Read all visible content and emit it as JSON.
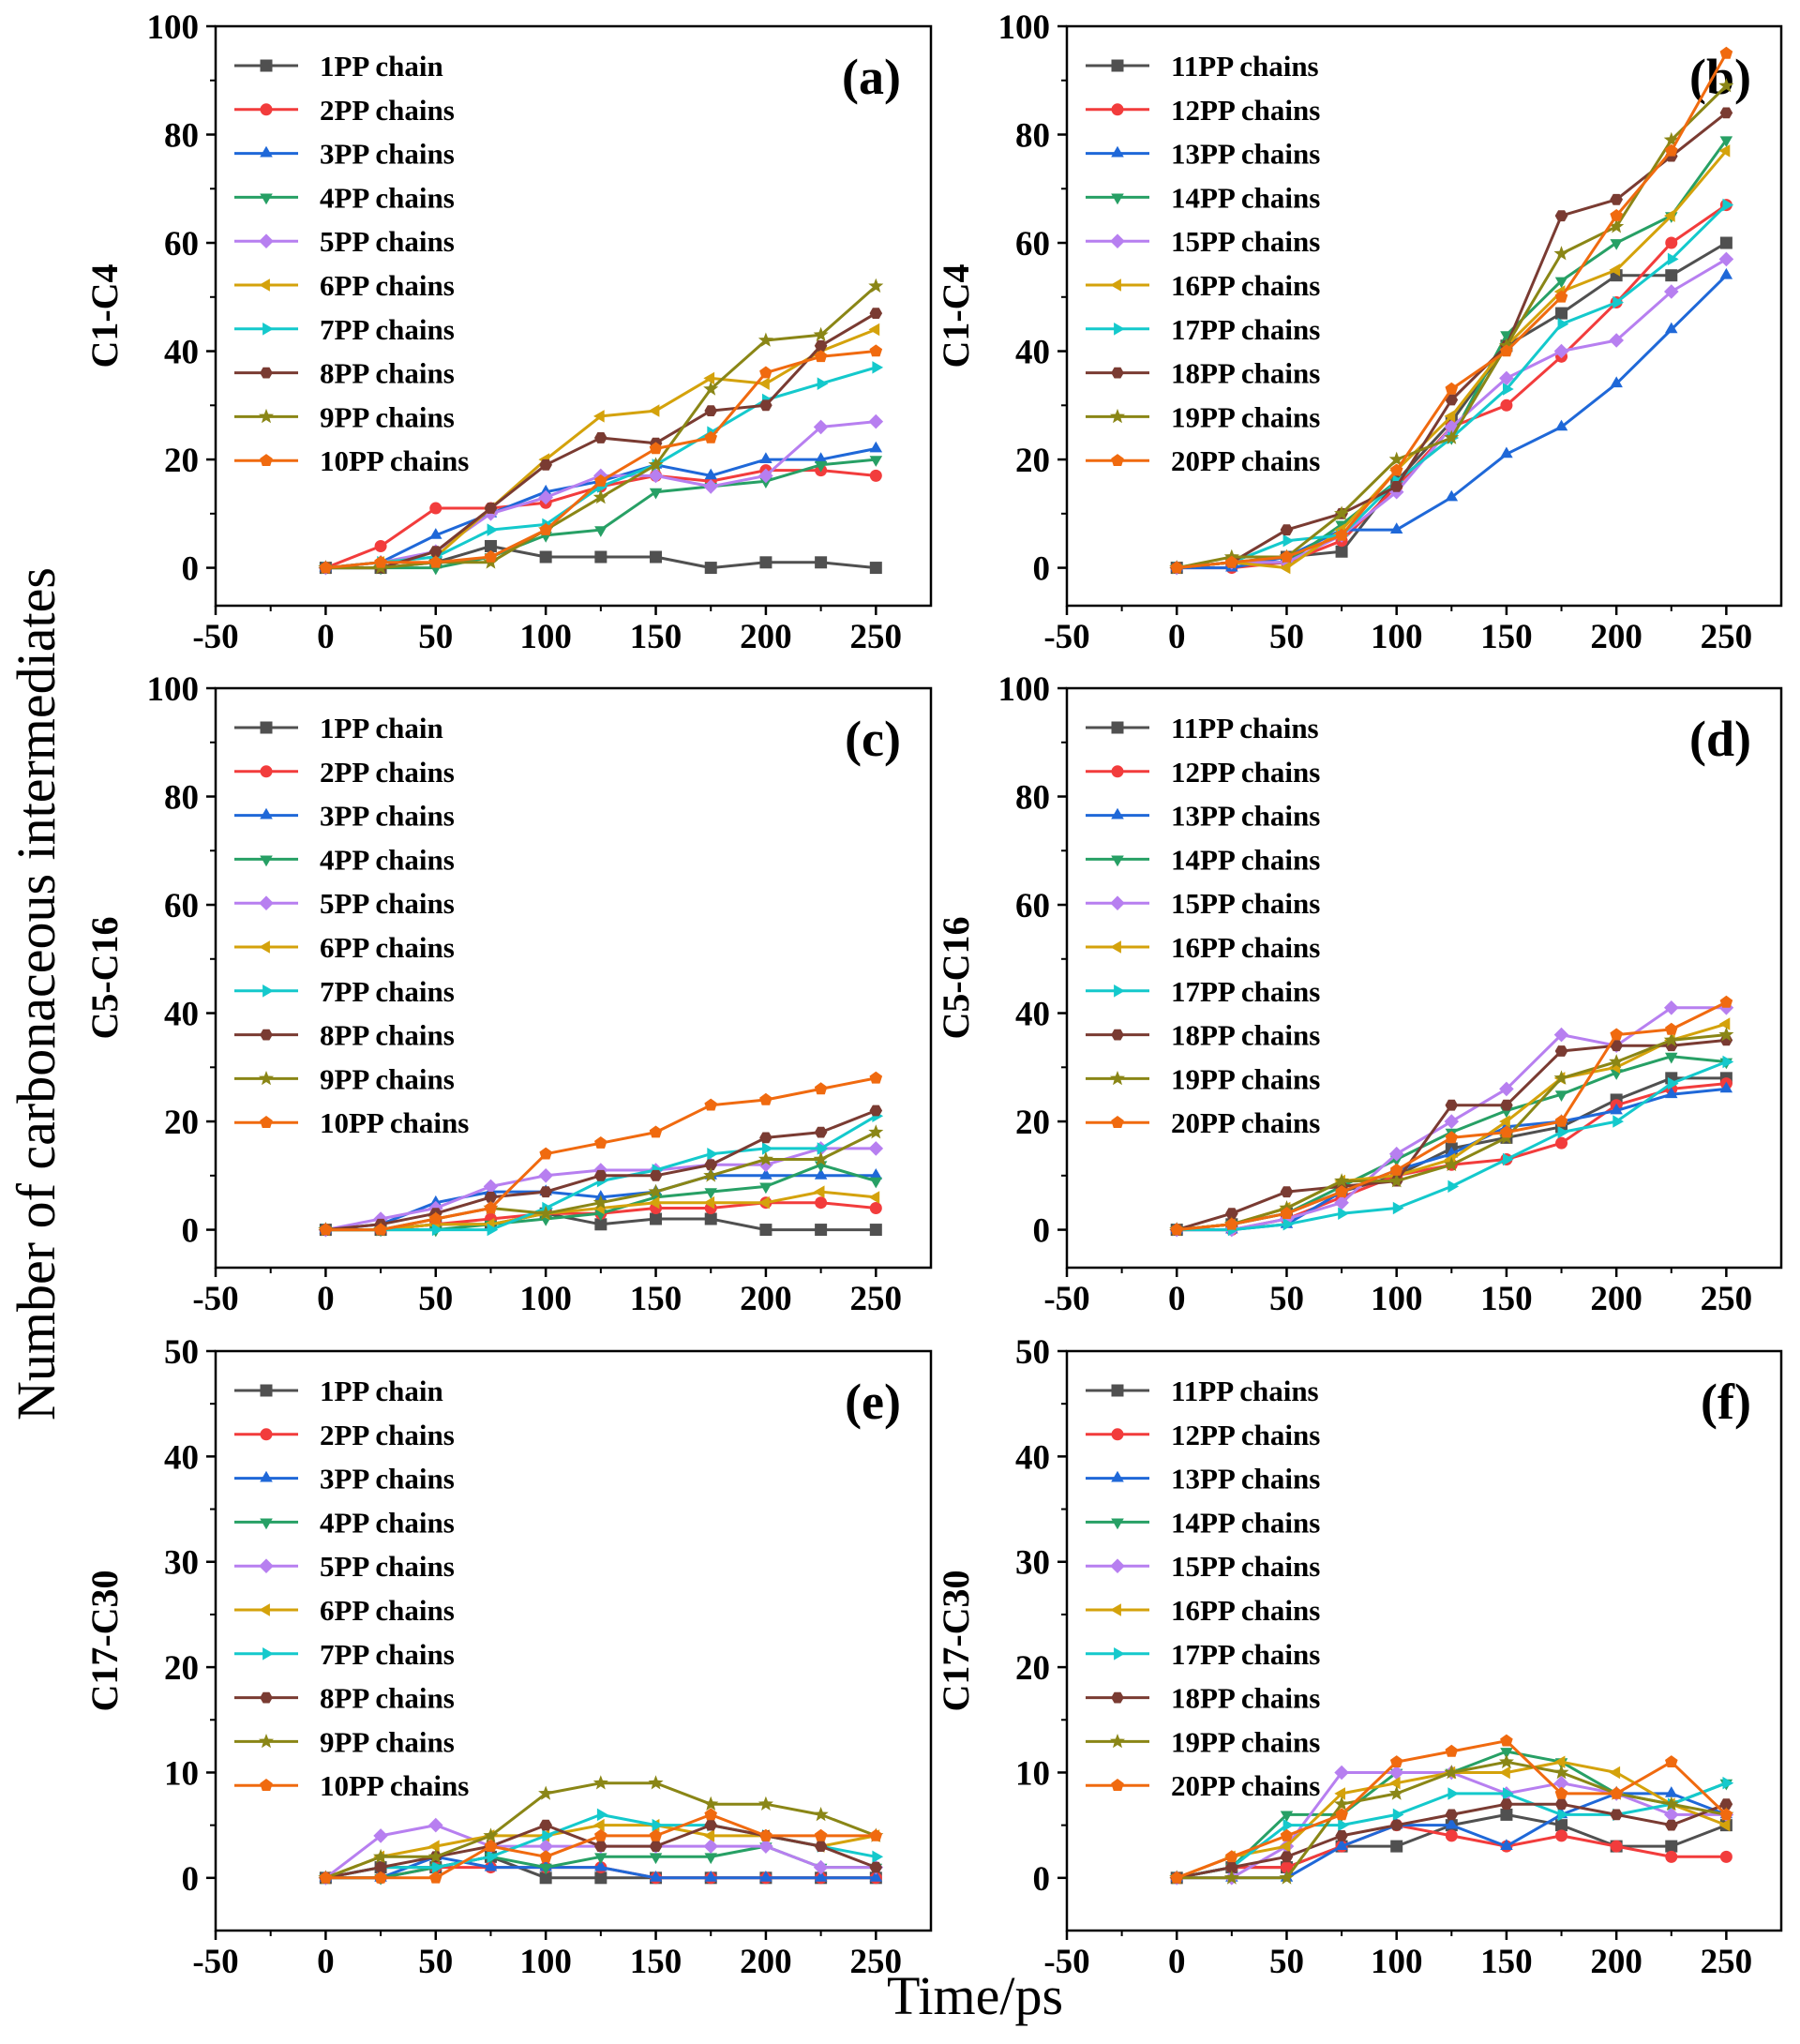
{
  "figure": {
    "shared_ylabel": "Number of carbonaceous intermediates",
    "shared_xlabel": "Time/ps"
  },
  "series_styles": [
    {
      "color": "#505050",
      "marker": "square"
    },
    {
      "color": "#f23c3c",
      "marker": "circle"
    },
    {
      "color": "#1f68d8",
      "marker": "triangle-up"
    },
    {
      "color": "#27a065",
      "marker": "triangle-down"
    },
    {
      "color": "#b77ff0",
      "marker": "diamond"
    },
    {
      "color": "#d4a20b",
      "marker": "triangle-left"
    },
    {
      "color": "#14c9cc",
      "marker": "triangle-right"
    },
    {
      "color": "#7a3b32",
      "marker": "hexagon"
    },
    {
      "color": "#8a8616",
      "marker": "star"
    },
    {
      "color": "#f06a0f",
      "marker": "pentagon"
    }
  ],
  "chart_data": [
    {
      "panel": "(a)",
      "type": "line",
      "ylabel": "C1-C4",
      "x": [
        0,
        25,
        50,
        75,
        100,
        125,
        150,
        175,
        200,
        225,
        250
      ],
      "xlim": [
        -50,
        275
      ],
      "xticks": [
        -50,
        0,
        50,
        100,
        150,
        200,
        250
      ],
      "ylim": [
        -7,
        100
      ],
      "yticks": [
        0,
        20,
        40,
        60,
        80,
        100
      ],
      "series": [
        {
          "name": "1PP chain",
          "values": [
            0,
            0,
            1,
            4,
            2,
            2,
            2,
            0,
            1,
            1,
            0
          ]
        },
        {
          "name": "2PP chains",
          "values": [
            0,
            4,
            11,
            11,
            12,
            15,
            17,
            16,
            18,
            18,
            17
          ]
        },
        {
          "name": "3PP chains",
          "values": [
            0,
            1,
            6,
            10,
            14,
            16,
            19,
            17,
            20,
            20,
            22
          ]
        },
        {
          "name": "4PP chains",
          "values": [
            0,
            0,
            0,
            2,
            6,
            7,
            14,
            15,
            16,
            19,
            20
          ]
        },
        {
          "name": "5PP chains",
          "values": [
            0,
            1,
            3,
            10,
            13,
            17,
            17,
            15,
            17,
            26,
            27
          ]
        },
        {
          "name": "6PP chains",
          "values": [
            0,
            1,
            2,
            11,
            20,
            28,
            29,
            35,
            34,
            40,
            44
          ]
        },
        {
          "name": "7PP chains",
          "values": [
            0,
            1,
            2,
            7,
            8,
            15,
            19,
            25,
            31,
            34,
            37
          ]
        },
        {
          "name": "8PP chains",
          "values": [
            0,
            0,
            3,
            11,
            19,
            24,
            23,
            29,
            30,
            41,
            47
          ]
        },
        {
          "name": "9PP chains",
          "values": [
            0,
            0,
            1,
            1,
            7,
            13,
            19,
            33,
            42,
            43,
            52
          ]
        },
        {
          "name": "10PP chains",
          "values": [
            0,
            1,
            1,
            2,
            7,
            16,
            22,
            24,
            36,
            39,
            40
          ]
        }
      ]
    },
    {
      "panel": "(b)",
      "type": "line",
      "ylabel": "C1-C4",
      "x": [
        0,
        25,
        50,
        75,
        100,
        125,
        150,
        175,
        200,
        225,
        250
      ],
      "xlim": [
        -50,
        275
      ],
      "xticks": [
        -50,
        0,
        50,
        100,
        150,
        200,
        250
      ],
      "ylim": [
        -7,
        100
      ],
      "yticks": [
        0,
        20,
        40,
        60,
        80,
        100
      ],
      "series": [
        {
          "name": "11PP chains",
          "values": [
            0,
            1,
            2,
            3,
            16,
            27,
            41,
            47,
            54,
            54,
            60
          ]
        },
        {
          "name": "12PP chains",
          "values": [
            0,
            0,
            1,
            5,
            15,
            26,
            30,
            39,
            49,
            60,
            67
          ]
        },
        {
          "name": "13PP chains",
          "values": [
            0,
            0,
            2,
            7,
            7,
            13,
            21,
            26,
            34,
            44,
            54
          ]
        },
        {
          "name": "14PP chains",
          "values": [
            0,
            1,
            1,
            8,
            16,
            24,
            43,
            53,
            60,
            65,
            79
          ]
        },
        {
          "name": "15PP chains",
          "values": [
            0,
            1,
            1,
            6,
            14,
            26,
            35,
            40,
            42,
            51,
            57
          ]
        },
        {
          "name": "16PP chains",
          "values": [
            0,
            1,
            0,
            7,
            18,
            28,
            41,
            51,
            55,
            65,
            77
          ]
        },
        {
          "name": "17PP chains",
          "values": [
            0,
            1,
            5,
            6,
            16,
            24,
            33,
            45,
            49,
            57,
            67
          ]
        },
        {
          "name": "18PP chains",
          "values": [
            0,
            1,
            7,
            10,
            15,
            31,
            41,
            65,
            68,
            76,
            84
          ]
        },
        {
          "name": "19PP chains",
          "values": [
            0,
            2,
            2,
            10,
            20,
            24,
            41,
            58,
            63,
            79,
            89
          ]
        },
        {
          "name": "20PP chains",
          "values": [
            0,
            1,
            2,
            6,
            18,
            33,
            40,
            50,
            65,
            77,
            95
          ]
        }
      ]
    },
    {
      "panel": "(c)",
      "type": "line",
      "ylabel": "C5-C16",
      "x": [
        0,
        25,
        50,
        75,
        100,
        125,
        150,
        175,
        200,
        225,
        250
      ],
      "xlim": [
        -50,
        275
      ],
      "xticks": [
        -50,
        0,
        50,
        100,
        150,
        200,
        250
      ],
      "ylim": [
        -7,
        100
      ],
      "yticks": [
        0,
        20,
        40,
        60,
        80,
        100
      ],
      "series": [
        {
          "name": "1PP chain",
          "values": [
            0,
            0,
            1,
            1,
            3,
            1,
            2,
            2,
            0,
            0,
            0
          ]
        },
        {
          "name": "2PP chains",
          "values": [
            0,
            0,
            1,
            2,
            3,
            3,
            4,
            4,
            5,
            5,
            4
          ]
        },
        {
          "name": "3PP chains",
          "values": [
            0,
            1,
            5,
            7,
            7,
            6,
            7,
            10,
            10,
            10,
            10
          ]
        },
        {
          "name": "4PP chains",
          "values": [
            0,
            0,
            0,
            1,
            2,
            3,
            6,
            7,
            8,
            12,
            9
          ]
        },
        {
          "name": "5PP chains",
          "values": [
            0,
            2,
            4,
            8,
            10,
            11,
            11,
            12,
            12,
            15,
            15
          ]
        },
        {
          "name": "6PP chains",
          "values": [
            0,
            0,
            1,
            1,
            3,
            4,
            5,
            5,
            5,
            7,
            6
          ]
        },
        {
          "name": "7PP chains",
          "values": [
            0,
            0,
            0,
            0,
            4,
            9,
            11,
            14,
            15,
            15,
            21
          ]
        },
        {
          "name": "8PP chains",
          "values": [
            0,
            1,
            3,
            6,
            7,
            10,
            10,
            12,
            17,
            18,
            22
          ]
        },
        {
          "name": "9PP chains",
          "values": [
            0,
            0,
            2,
            4,
            3,
            5,
            7,
            10,
            13,
            13,
            18
          ]
        },
        {
          "name": "10PP chains",
          "values": [
            0,
            0,
            2,
            4,
            14,
            16,
            18,
            23,
            24,
            26,
            28
          ]
        }
      ]
    },
    {
      "panel": "(d)",
      "type": "line",
      "ylabel": "C5-C16",
      "x": [
        0,
        25,
        50,
        75,
        100,
        125,
        150,
        175,
        200,
        225,
        250
      ],
      "xlim": [
        -50,
        275
      ],
      "xticks": [
        -50,
        0,
        50,
        100,
        150,
        200,
        250
      ],
      "ylim": [
        -7,
        100
      ],
      "yticks": [
        0,
        20,
        40,
        60,
        80,
        100
      ],
      "series": [
        {
          "name": "11PP chains",
          "values": [
            0,
            1,
            3,
            7,
            10,
            15,
            17,
            19,
            24,
            28,
            28
          ]
        },
        {
          "name": "12PP chains",
          "values": [
            0,
            0,
            2,
            6,
            10,
            12,
            13,
            16,
            23,
            26,
            27
          ]
        },
        {
          "name": "13PP chains",
          "values": [
            0,
            0,
            1,
            7,
            11,
            14,
            19,
            20,
            22,
            25,
            26
          ]
        },
        {
          "name": "14PP chains",
          "values": [
            0,
            1,
            3,
            8,
            13,
            18,
            22,
            25,
            29,
            32,
            31
          ]
        },
        {
          "name": "15PP chains",
          "values": [
            0,
            0,
            2,
            5,
            14,
            20,
            26,
            36,
            34,
            41,
            41
          ]
        },
        {
          "name": "16PP chains",
          "values": [
            0,
            1,
            4,
            9,
            10,
            13,
            20,
            28,
            30,
            35,
            38
          ]
        },
        {
          "name": "17PP chains",
          "values": [
            0,
            0,
            1,
            3,
            4,
            8,
            13,
            18,
            20,
            27,
            31
          ]
        },
        {
          "name": "18PP chains",
          "values": [
            0,
            3,
            7,
            8,
            9,
            23,
            23,
            33,
            34,
            34,
            35
          ]
        },
        {
          "name": "19PP chains",
          "values": [
            0,
            1,
            4,
            9,
            9,
            12,
            17,
            28,
            31,
            35,
            36
          ]
        },
        {
          "name": "20PP chains",
          "values": [
            0,
            1,
            3,
            7,
            11,
            17,
            18,
            20,
            36,
            37,
            42
          ]
        }
      ]
    },
    {
      "panel": "(e)",
      "type": "line",
      "ylabel": "C17-C30",
      "x": [
        0,
        25,
        50,
        75,
        100,
        125,
        150,
        175,
        200,
        225,
        250
      ],
      "xlim": [
        -50,
        275
      ],
      "xticks": [
        -50,
        0,
        50,
        100,
        150,
        200,
        250
      ],
      "ylim": [
        -5,
        50
      ],
      "yticks": [
        0,
        10,
        20,
        30,
        40,
        50
      ],
      "series": [
        {
          "name": "1PP chain",
          "values": [
            0,
            1,
            1,
            2,
            0,
            0,
            0,
            0,
            0,
            0,
            0
          ]
        },
        {
          "name": "2PP chains",
          "values": [
            0,
            0,
            1,
            1,
            1,
            1,
            0,
            0,
            0,
            0,
            0
          ]
        },
        {
          "name": "3PP chains",
          "values": [
            0,
            0,
            2,
            1,
            1,
            1,
            0,
            0,
            0,
            0,
            0
          ]
        },
        {
          "name": "4PP chains",
          "values": [
            0,
            0,
            1,
            2,
            1,
            2,
            2,
            2,
            3,
            1,
            1
          ]
        },
        {
          "name": "5PP chains",
          "values": [
            0,
            4,
            5,
            3,
            3,
            3,
            3,
            3,
            3,
            1,
            1
          ]
        },
        {
          "name": "6PP chains",
          "values": [
            0,
            2,
            3,
            4,
            4,
            5,
            5,
            4,
            4,
            3,
            4
          ]
        },
        {
          "name": "7PP chains",
          "values": [
            0,
            1,
            1,
            2,
            4,
            6,
            5,
            5,
            4,
            3,
            2
          ]
        },
        {
          "name": "8PP chains",
          "values": [
            0,
            1,
            2,
            3,
            5,
            3,
            3,
            5,
            4,
            3,
            1
          ]
        },
        {
          "name": "9PP chains",
          "values": [
            0,
            2,
            2,
            4,
            8,
            9,
            9,
            7,
            7,
            6,
            4
          ]
        },
        {
          "name": "10PP chains",
          "values": [
            0,
            0,
            0,
            3,
            2,
            4,
            4,
            6,
            4,
            4,
            4
          ]
        }
      ]
    },
    {
      "panel": "(f)",
      "type": "line",
      "ylabel": "C17-C30",
      "x": [
        0,
        25,
        50,
        75,
        100,
        125,
        150,
        175,
        200,
        225,
        250
      ],
      "xlim": [
        -50,
        275
      ],
      "xticks": [
        -50,
        0,
        50,
        100,
        150,
        200,
        250
      ],
      "ylim": [
        -5,
        50
      ],
      "yticks": [
        0,
        10,
        20,
        30,
        40,
        50
      ],
      "series": [
        {
          "name": "11PP chains",
          "values": [
            0,
            1,
            1,
            3,
            3,
            5,
            6,
            5,
            3,
            3,
            5
          ]
        },
        {
          "name": "12PP chains",
          "values": [
            0,
            1,
            1,
            3,
            5,
            4,
            3,
            4,
            3,
            2,
            2
          ]
        },
        {
          "name": "13PP chains",
          "values": [
            0,
            0,
            0,
            3,
            5,
            5,
            3,
            6,
            8,
            8,
            6
          ]
        },
        {
          "name": "14PP chains",
          "values": [
            0,
            1,
            6,
            6,
            10,
            10,
            12,
            11,
            8,
            7,
            9
          ]
        },
        {
          "name": "15PP chains",
          "values": [
            0,
            0,
            3,
            10,
            10,
            10,
            8,
            9,
            8,
            6,
            6
          ]
        },
        {
          "name": "16PP chains",
          "values": [
            0,
            2,
            3,
            8,
            9,
            10,
            10,
            11,
            10,
            7,
            5
          ]
        },
        {
          "name": "17PP chains",
          "values": [
            0,
            1,
            5,
            5,
            6,
            8,
            8,
            6,
            6,
            7,
            9
          ]
        },
        {
          "name": "18PP chains",
          "values": [
            0,
            1,
            2,
            4,
            5,
            6,
            7,
            7,
            6,
            5,
            7
          ]
        },
        {
          "name": "19PP chains",
          "values": [
            0,
            0,
            0,
            7,
            8,
            10,
            11,
            10,
            8,
            7,
            6
          ]
        },
        {
          "name": "20PP chains",
          "values": [
            0,
            2,
            4,
            6,
            11,
            12,
            13,
            8,
            8,
            11,
            6
          ]
        }
      ]
    }
  ]
}
